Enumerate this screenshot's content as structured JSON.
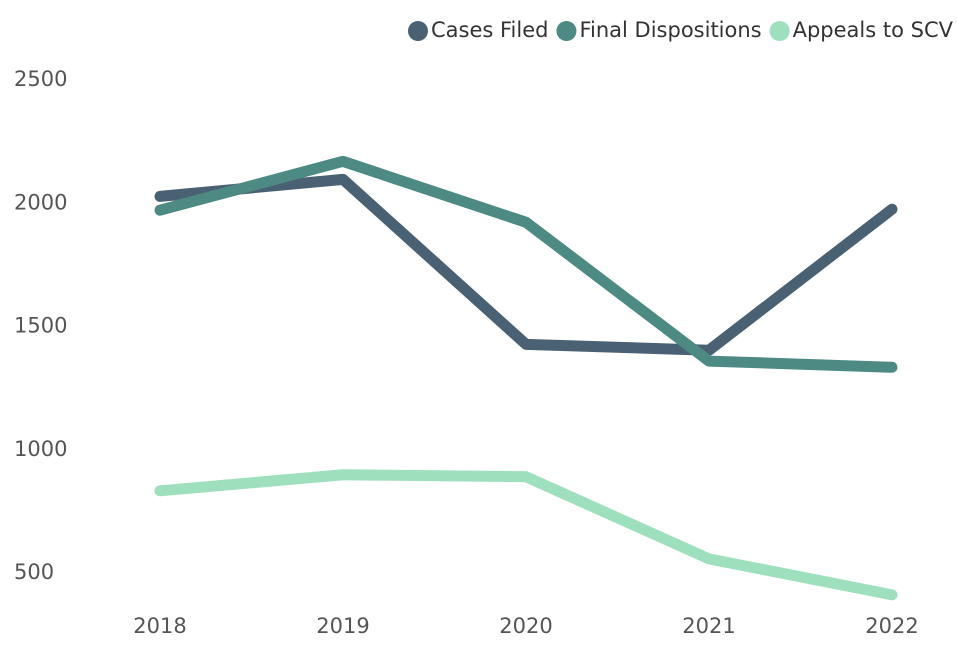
{
  "chart_data": {
    "type": "line",
    "categories": [
      "2018",
      "2019",
      "2020",
      "2021",
      "2022"
    ],
    "series": [
      {
        "name": "Cases Filed",
        "color": "#4a6173",
        "values": [
          2028,
          2097,
          1428,
          1404,
          1976
        ]
      },
      {
        "name": "Final Dispositions",
        "color": "#4e8a84",
        "values": [
          1972,
          2170,
          1923,
          1360,
          1335
        ]
      },
      {
        "name": "Appeals to SCV",
        "color": "#9ee0bd",
        "values": [
          834,
          899,
          891,
          558,
          412
        ]
      }
    ],
    "ylim": [
      310,
      2500
    ],
    "yticks": [
      500,
      1000,
      1500,
      2000,
      2500
    ],
    "grid": false,
    "legend": "top-right"
  }
}
